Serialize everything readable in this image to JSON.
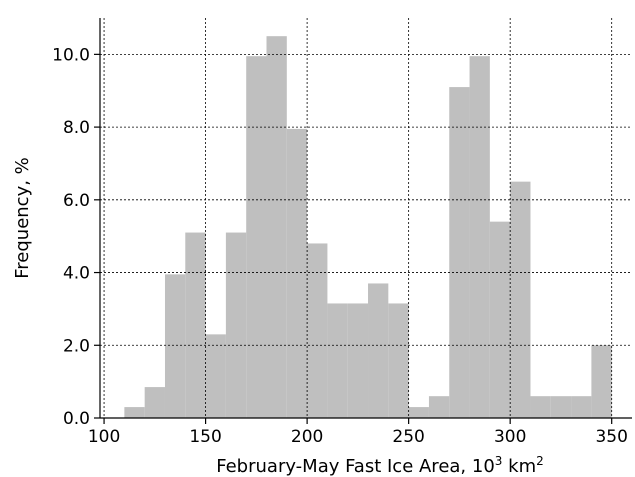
{
  "chart_data": {
    "type": "bar",
    "title": "",
    "xlabel": "February-May Fast Ice Area, 10",
    "xlabel_sup1": "3",
    "xlabel_mid": " km",
    "xlabel_sup2": "2",
    "ylabel": "Frequency, %",
    "xlim": [
      98,
      360
    ],
    "ylim": [
      0,
      11.0
    ],
    "xticks": [
      100,
      150,
      200,
      250,
      300,
      350
    ],
    "xtick_labels": [
      "100",
      "150",
      "200",
      "250",
      "300",
      "350"
    ],
    "yticks": [
      0,
      2,
      4,
      6,
      8,
      10
    ],
    "ytick_labels": [
      "0.0",
      "2.0",
      "4.0",
      "6.0",
      "8.0",
      "10.0"
    ],
    "grid": true,
    "bar_color": "#bfbfbf",
    "bins": [
      {
        "x0": 110,
        "x1": 120,
        "value": 0.3
      },
      {
        "x0": 120,
        "x1": 130,
        "value": 0.85
      },
      {
        "x0": 130,
        "x1": 140,
        "value": 3.95
      },
      {
        "x0": 140,
        "x1": 150,
        "value": 5.1
      },
      {
        "x0": 150,
        "x1": 160,
        "value": 2.3
      },
      {
        "x0": 160,
        "x1": 170,
        "value": 5.1
      },
      {
        "x0": 170,
        "x1": 180,
        "value": 9.95
      },
      {
        "x0": 180,
        "x1": 190,
        "value": 10.5
      },
      {
        "x0": 190,
        "x1": 200,
        "value": 7.95
      },
      {
        "x0": 200,
        "x1": 210,
        "value": 4.8
      },
      {
        "x0": 210,
        "x1": 220,
        "value": 3.15
      },
      {
        "x0": 220,
        "x1": 230,
        "value": 3.15
      },
      {
        "x0": 230,
        "x1": 240,
        "value": 3.7
      },
      {
        "x0": 240,
        "x1": 250,
        "value": 3.15
      },
      {
        "x0": 250,
        "x1": 260,
        "value": 0.3
      },
      {
        "x0": 260,
        "x1": 270,
        "value": 0.6
      },
      {
        "x0": 270,
        "x1": 280,
        "value": 9.1
      },
      {
        "x0": 280,
        "x1": 290,
        "value": 9.95
      },
      {
        "x0": 290,
        "x1": 300,
        "value": 5.4
      },
      {
        "x0": 300,
        "x1": 310,
        "value": 6.5
      },
      {
        "x0": 310,
        "x1": 320,
        "value": 0.6
      },
      {
        "x0": 320,
        "x1": 330,
        "value": 0.6
      },
      {
        "x0": 330,
        "x1": 340,
        "value": 0.6
      },
      {
        "x0": 340,
        "x1": 350,
        "value": 2.0
      }
    ]
  }
}
